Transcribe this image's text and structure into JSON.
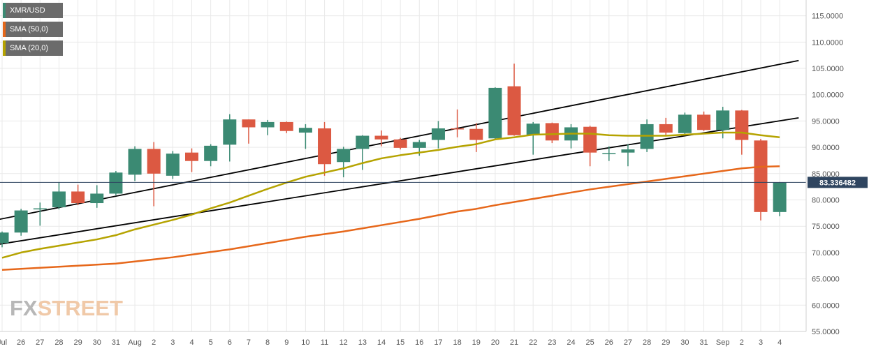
{
  "legend": [
    {
      "label": "XMR/USD",
      "color": "#3b8a73"
    },
    {
      "label": "SMA (50,0)",
      "color": "#e6671a"
    },
    {
      "label": "SMA (20,0)",
      "color": "#b5a300"
    }
  ],
  "logo": {
    "fx": "FX",
    "street": "STREET"
  },
  "colors": {
    "up": "#3b8a73",
    "down": "#dc5942",
    "sma50": "#e6671a",
    "sma20": "#b5a300",
    "trend": "#000000",
    "grid": "#e9e9e9",
    "price_line": "#2f4560",
    "price_tag": "#2f4560"
  },
  "chart_data": {
    "type": "candlestick",
    "pair": "XMR/USD",
    "current_price": 83.336482,
    "current_price_label": "83.336482",
    "ylim": [
      55,
      118
    ],
    "y_ticks": [
      "55.0000",
      "60.0000",
      "65.0000",
      "70.0000",
      "75.0000",
      "80.0000",
      "85.0000",
      "90.0000",
      "95.0000",
      "100.0000",
      "105.0000",
      "110.0000",
      "115.0000"
    ],
    "x_labels": [
      "Jul",
      "26",
      "27",
      "28",
      "29",
      "30",
      "31",
      "Aug",
      "2",
      "3",
      "4",
      "5",
      "6",
      "7",
      "8",
      "9",
      "10",
      "11",
      "12",
      "13",
      "14",
      "15",
      "16",
      "17",
      "18",
      "19",
      "20",
      "21",
      "22",
      "23",
      "24",
      "25",
      "26",
      "27",
      "28",
      "29",
      "30",
      "31",
      "Sep",
      "2",
      "3",
      "4"
    ],
    "candles": [
      {
        "date": "Jul 25",
        "open": 71.8,
        "high": 74.0,
        "low": 71.0,
        "close": 73.8
      },
      {
        "date": "Jul 26",
        "open": 73.8,
        "high": 78.3,
        "low": 73.2,
        "close": 78.0
      },
      {
        "date": "Jul 27",
        "open": 78.2,
        "high": 79.5,
        "low": 75.1,
        "close": 78.4
      },
      {
        "date": "Jul 28",
        "open": 78.6,
        "high": 83.4,
        "low": 78.2,
        "close": 81.6
      },
      {
        "date": "Jul 29",
        "open": 81.6,
        "high": 82.9,
        "low": 79.0,
        "close": 79.4
      },
      {
        "date": "Jul 30",
        "open": 79.4,
        "high": 82.8,
        "low": 78.5,
        "close": 81.2
      },
      {
        "date": "Jul 31",
        "open": 81.2,
        "high": 85.5,
        "low": 80.9,
        "close": 85.2
      },
      {
        "date": "Aug 1",
        "open": 84.8,
        "high": 90.2,
        "low": 83.6,
        "close": 89.7
      },
      {
        "date": "Aug 2",
        "open": 89.7,
        "high": 91.0,
        "low": 78.8,
        "close": 85.0
      },
      {
        "date": "Aug 3",
        "open": 84.6,
        "high": 89.3,
        "low": 84.0,
        "close": 88.8
      },
      {
        "date": "Aug 4",
        "open": 89.0,
        "high": 89.8,
        "low": 85.3,
        "close": 87.4
      },
      {
        "date": "Aug 5",
        "open": 87.4,
        "high": 90.6,
        "low": 86.4,
        "close": 90.3
      },
      {
        "date": "Aug 6",
        "open": 90.5,
        "high": 96.3,
        "low": 87.3,
        "close": 95.3
      },
      {
        "date": "Aug 7",
        "open": 95.3,
        "high": 95.3,
        "low": 90.7,
        "close": 93.8
      },
      {
        "date": "Aug 8",
        "open": 93.8,
        "high": 95.2,
        "low": 92.3,
        "close": 94.8
      },
      {
        "date": "Aug 9",
        "open": 94.8,
        "high": 94.9,
        "low": 92.7,
        "close": 93.1
      },
      {
        "date": "Aug 10",
        "open": 92.8,
        "high": 94.4,
        "low": 89.7,
        "close": 93.7
      },
      {
        "date": "Aug 11",
        "open": 93.6,
        "high": 94.8,
        "low": 84.6,
        "close": 86.8
      },
      {
        "date": "Aug 12",
        "open": 87.2,
        "high": 90.1,
        "low": 84.3,
        "close": 89.7
      },
      {
        "date": "Aug 13",
        "open": 89.7,
        "high": 92.3,
        "low": 85.7,
        "close": 92.2
      },
      {
        "date": "Aug 14",
        "open": 92.2,
        "high": 93.2,
        "low": 90.2,
        "close": 91.5
      },
      {
        "date": "Aug 15",
        "open": 91.5,
        "high": 91.8,
        "low": 89.6,
        "close": 89.9
      },
      {
        "date": "Aug 16",
        "open": 89.9,
        "high": 91.4,
        "low": 88.4,
        "close": 91.0
      },
      {
        "date": "Aug 17",
        "open": 91.4,
        "high": 95.0,
        "low": 89.8,
        "close": 93.6
      },
      {
        "date": "Aug 18",
        "open": 93.6,
        "high": 97.2,
        "low": 91.9,
        "close": 93.5
      },
      {
        "date": "Aug 19",
        "open": 93.5,
        "high": 94.6,
        "low": 89.1,
        "close": 91.4
      },
      {
        "date": "Aug 20",
        "open": 91.7,
        "high": 101.4,
        "low": 91.4,
        "close": 101.3
      },
      {
        "date": "Aug 21",
        "open": 101.6,
        "high": 105.9,
        "low": 92.2,
        "close": 92.3
      },
      {
        "date": "Aug 22",
        "open": 92.4,
        "high": 94.8,
        "low": 88.6,
        "close": 94.5
      },
      {
        "date": "Aug 23",
        "open": 94.6,
        "high": 94.7,
        "low": 90.8,
        "close": 91.3
      },
      {
        "date": "Aug 24",
        "open": 91.3,
        "high": 94.4,
        "low": 89.8,
        "close": 93.8
      },
      {
        "date": "Aug 25",
        "open": 93.9,
        "high": 94.1,
        "low": 86.4,
        "close": 89.0
      },
      {
        "date": "Aug 26",
        "open": 88.8,
        "high": 90.2,
        "low": 87.4,
        "close": 88.9
      },
      {
        "date": "Aug 27",
        "open": 89.0,
        "high": 90.6,
        "low": 86.4,
        "close": 89.6
      },
      {
        "date": "Aug 28",
        "open": 89.7,
        "high": 95.3,
        "low": 89.1,
        "close": 94.4
      },
      {
        "date": "Aug 29",
        "open": 94.4,
        "high": 95.6,
        "low": 92.3,
        "close": 92.8
      },
      {
        "date": "Aug 30",
        "open": 92.7,
        "high": 96.6,
        "low": 92.5,
        "close": 96.2
      },
      {
        "date": "Aug 31",
        "open": 96.2,
        "high": 96.8,
        "low": 93.1,
        "close": 93.3
      },
      {
        "date": "Sep 1",
        "open": 93.3,
        "high": 97.7,
        "low": 91.7,
        "close": 97.0
      },
      {
        "date": "Sep 2",
        "open": 97.0,
        "high": 97.1,
        "low": 88.6,
        "close": 91.4
      },
      {
        "date": "Sep 3",
        "open": 91.3,
        "high": 91.6,
        "low": 76.1,
        "close": 77.7
      },
      {
        "date": "Sep 4",
        "open": 77.7,
        "high": 83.4,
        "low": 76.9,
        "close": 83.3
      }
    ],
    "sma_50": {
      "name": "SMA (50,0)",
      "values": [
        66.7,
        66.9,
        67.1,
        67.3,
        67.5,
        67.7,
        67.9,
        68.3,
        68.7,
        69.1,
        69.6,
        70.1,
        70.6,
        71.2,
        71.8,
        72.4,
        73.0,
        73.5,
        74.0,
        74.6,
        75.2,
        75.8,
        76.4,
        77.1,
        77.8,
        78.3,
        79.0,
        79.6,
        80.2,
        80.8,
        81.4,
        82.0,
        82.5,
        83.0,
        83.5,
        84.0,
        84.5,
        85.0,
        85.5,
        86.0,
        86.3,
        86.4
      ]
    },
    "sma_20": {
      "name": "SMA (20,0)",
      "values": [
        69.0,
        70.0,
        70.7,
        71.3,
        71.9,
        72.5,
        73.3,
        74.4,
        75.3,
        76.2,
        77.2,
        78.4,
        79.5,
        80.8,
        82.1,
        83.3,
        84.4,
        85.2,
        86.0,
        87.0,
        87.9,
        88.5,
        89.0,
        89.5,
        90.1,
        90.6,
        91.5,
        91.9,
        92.4,
        92.5,
        92.6,
        92.6,
        92.3,
        92.2,
        92.2,
        92.2,
        92.4,
        92.6,
        92.8,
        92.8,
        92.3,
        91.9
      ]
    },
    "trendlines": [
      {
        "name": "channel-upper",
        "from": {
          "index": -0.3,
          "value": 76.2
        },
        "to": {
          "index": 42,
          "value": 106.5
        }
      },
      {
        "name": "channel-lower",
        "from": {
          "index": -0.3,
          "value": 71.5
        },
        "to": {
          "index": 42,
          "value": 95.6
        }
      }
    ]
  }
}
